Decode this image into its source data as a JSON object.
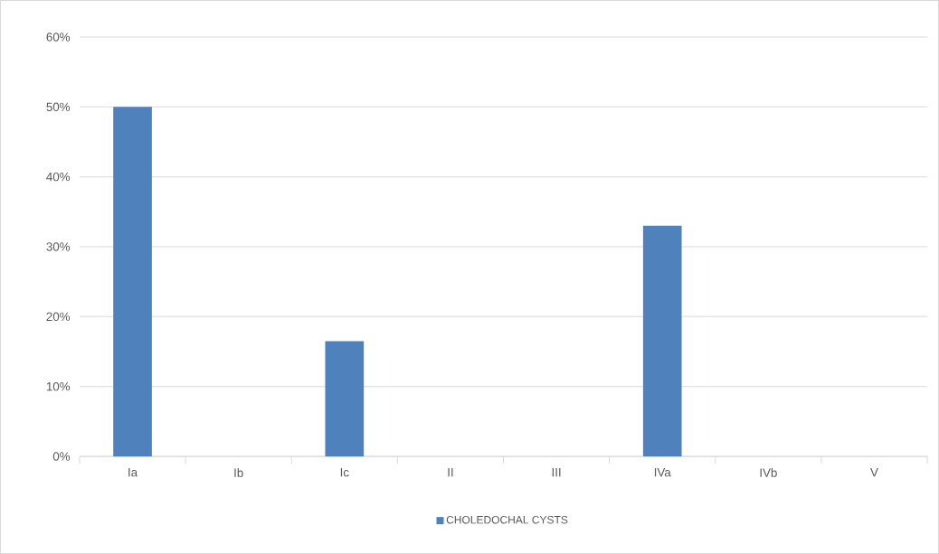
{
  "chart_data": {
    "type": "bar",
    "categories": [
      "Ia",
      "Ib",
      "Ic",
      "II",
      "III",
      "IVa",
      "IVb",
      "V"
    ],
    "series": [
      {
        "name": "CHOLEDOCHAL CYSTS",
        "color": "#4f81bd",
        "values": [
          50,
          0,
          16.5,
          0,
          0,
          33,
          0,
          0
        ]
      }
    ],
    "ylim": [
      0,
      60
    ],
    "yticks": [
      {
        "value": 0,
        "label": "0%"
      },
      {
        "value": 10,
        "label": "10%"
      },
      {
        "value": 20,
        "label": "20%"
      },
      {
        "value": 30,
        "label": "30%"
      },
      {
        "value": 40,
        "label": "40%"
      },
      {
        "value": 50,
        "label": "50%"
      },
      {
        "value": 60,
        "label": "60%"
      }
    ],
    "grid": "y",
    "legend": "bottom"
  }
}
